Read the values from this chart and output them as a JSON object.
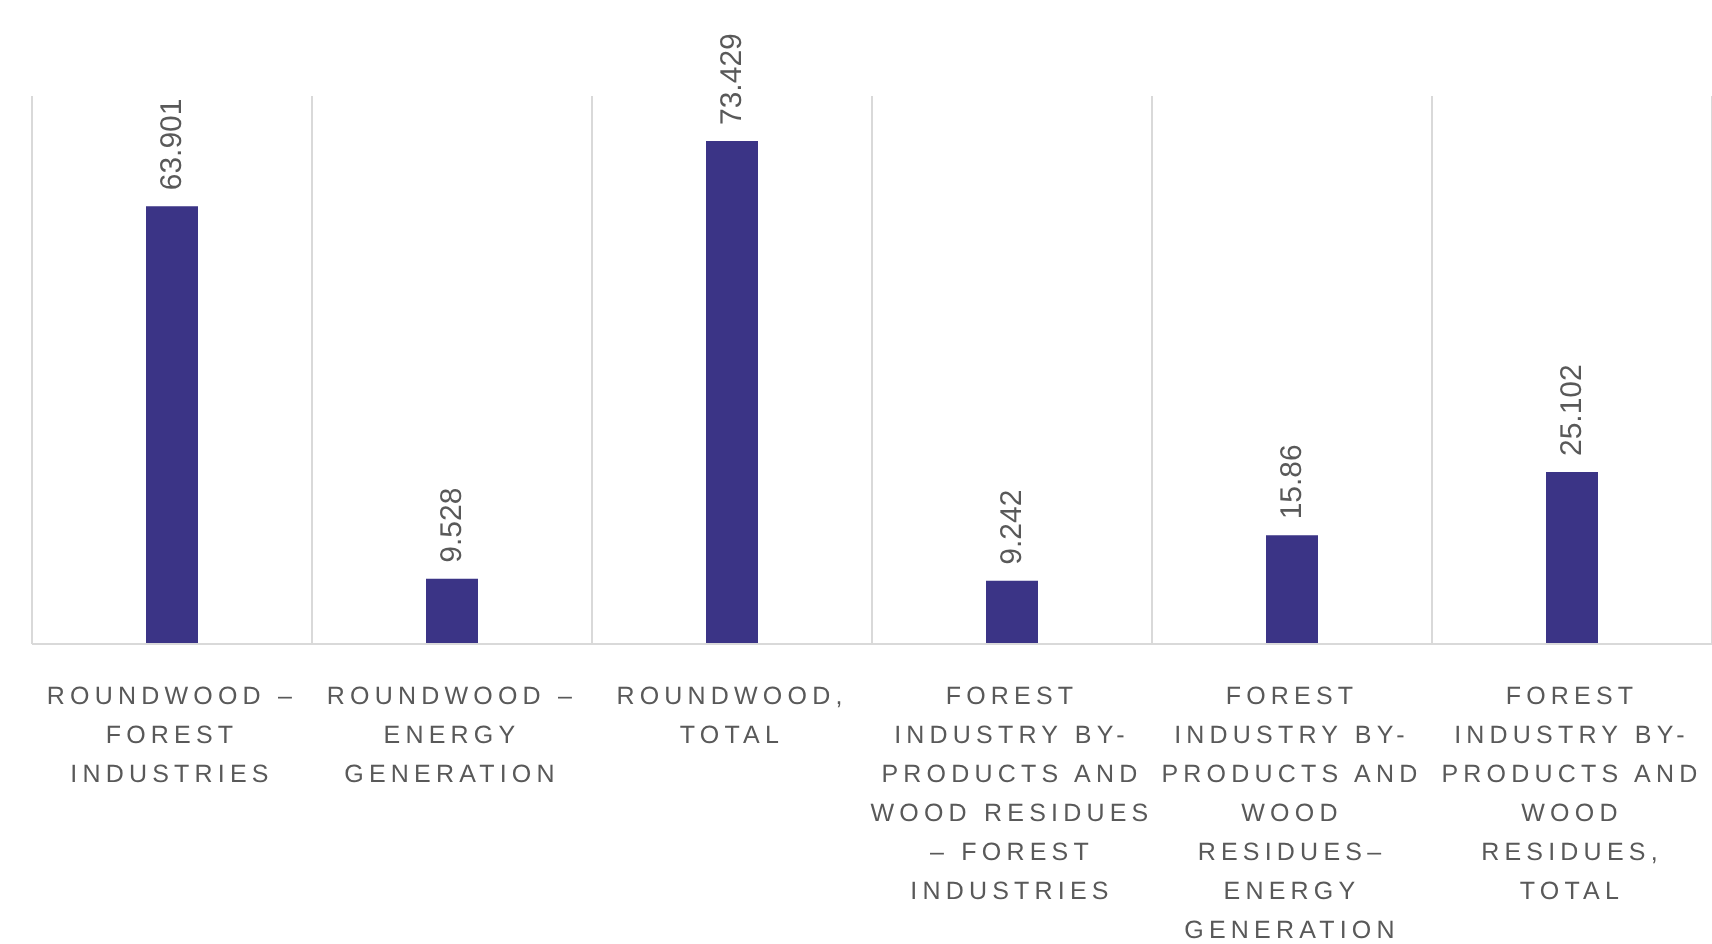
{
  "chart_data": {
    "type": "bar",
    "categories": [
      "ROUNDWOOD – FOREST INDUSTRIES",
      "ROUNDWOOD – ENERGY GENERATION",
      "ROUNDWOOD, TOTAL",
      "FOREST INDUSTRY BY-PRODUCTS AND WOOD RESIDUES – FOREST INDUSTRIES",
      "FOREST INDUSTRY BY-PRODUCTS AND WOOD RESIDUES– ENERGY GENERATION",
      "FOREST INDUSTRY BY-PRODUCTS AND WOOD RESIDUES, TOTAL"
    ],
    "values": [
      63.901,
      9.528,
      73.429,
      9.242,
      15.86,
      25.102
    ],
    "color": "#3b3486",
    "data_labels": true,
    "grid": "x",
    "tick_labels": "x"
  }
}
